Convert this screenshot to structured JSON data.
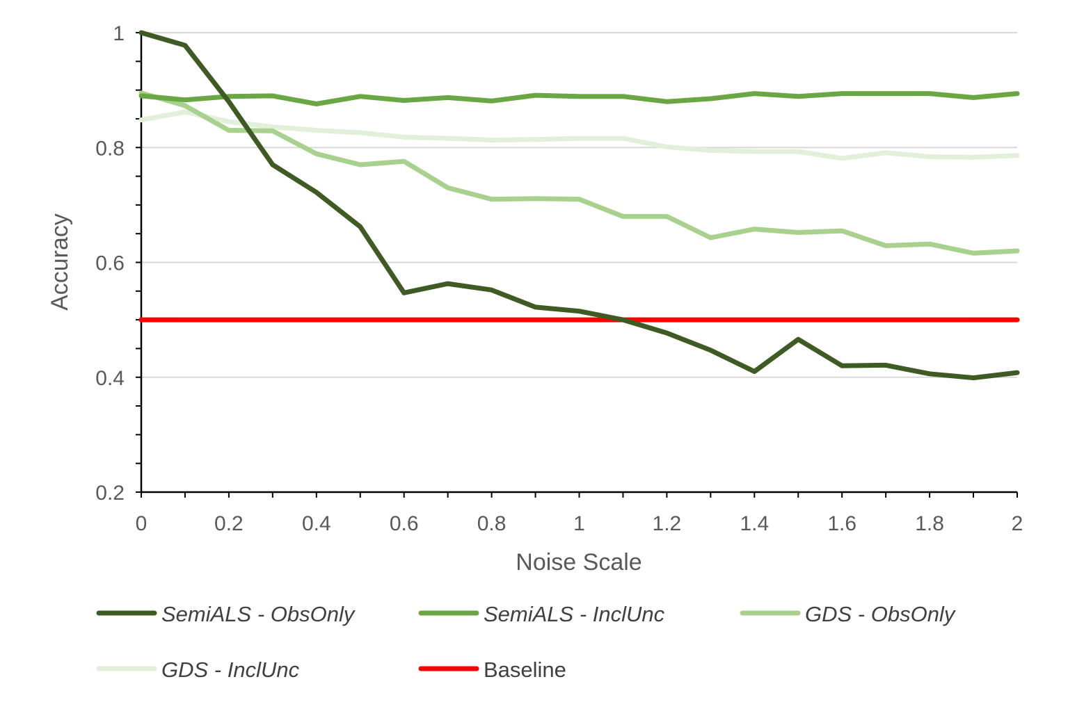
{
  "chart_data": {
    "type": "line",
    "title": "",
    "xlabel": "Noise Scale",
    "ylabel": "Accuracy",
    "xlim": [
      0,
      2
    ],
    "ylim": [
      0.2,
      1
    ],
    "x": [
      0,
      0.1,
      0.2,
      0.3,
      0.4,
      0.5,
      0.6,
      0.7,
      0.8,
      0.9,
      1,
      1.1,
      1.2,
      1.3,
      1.4,
      1.5,
      1.6,
      1.7,
      1.8,
      1.9,
      2
    ],
    "x_ticks": [
      "0",
      "0.2",
      "0.4",
      "0.6",
      "0.8",
      "1",
      "1.2",
      "1.4",
      "1.6",
      "1.8",
      "2"
    ],
    "y_ticks": [
      "0.2",
      "0.4",
      "0.6",
      "0.8",
      "1"
    ],
    "grid": true,
    "legend_position": "bottom",
    "series": [
      {
        "name": "SemiALS - ObsOnly",
        "italic": true,
        "color": "#3e5b24",
        "values": [
          1.0,
          0.978,
          0.88,
          0.77,
          0.722,
          0.662,
          0.547,
          0.563,
          0.552,
          0.522,
          0.515,
          0.5,
          0.477,
          0.447,
          0.41,
          0.466,
          0.42,
          0.421,
          0.406,
          0.399,
          0.408
        ]
      },
      {
        "name": "SemiALS - InclUnc",
        "italic": true,
        "color": "#6aa744",
        "values": [
          0.89,
          0.883,
          0.889,
          0.89,
          0.876,
          0.889,
          0.882,
          0.887,
          0.881,
          0.891,
          0.889,
          0.889,
          0.88,
          0.885,
          0.894,
          0.889,
          0.894,
          0.894,
          0.894,
          0.887,
          0.894
        ]
      },
      {
        "name": "GDS - ObsOnly",
        "italic": true,
        "color": "#a8d18d",
        "values": [
          0.895,
          0.873,
          0.83,
          0.829,
          0.789,
          0.77,
          0.776,
          0.73,
          0.71,
          0.711,
          0.71,
          0.68,
          0.68,
          0.643,
          0.658,
          0.652,
          0.655,
          0.629,
          0.632,
          0.616,
          0.62
        ]
      },
      {
        "name": "GDS - InclUnc",
        "italic": true,
        "color": "#e2efda",
        "values": [
          0.848,
          0.862,
          0.845,
          0.836,
          0.83,
          0.826,
          0.818,
          0.816,
          0.813,
          0.814,
          0.816,
          0.816,
          0.801,
          0.795,
          0.793,
          0.793,
          0.781,
          0.791,
          0.784,
          0.783,
          0.786
        ]
      },
      {
        "name": "Baseline",
        "italic": false,
        "color": "#ff0000",
        "values": [
          0.5,
          0.5,
          0.5,
          0.5,
          0.5,
          0.5,
          0.5,
          0.5,
          0.5,
          0.5,
          0.5,
          0.5,
          0.5,
          0.5,
          0.5,
          0.5,
          0.5,
          0.5,
          0.5,
          0.5,
          0.5
        ]
      }
    ]
  }
}
